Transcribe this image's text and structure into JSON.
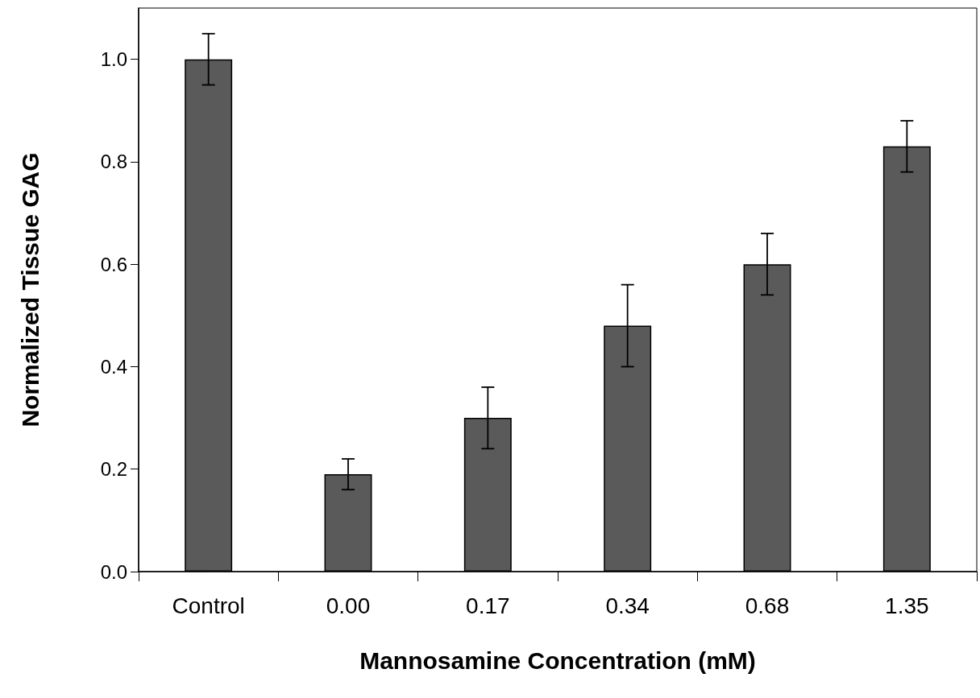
{
  "chart_data": {
    "type": "bar",
    "xlabel": "Mannosamine Concentration (mM)",
    "ylabel": "Normalized Tissue GAG",
    "categories": [
      "Control",
      "0.00",
      "0.17",
      "0.34",
      "0.68",
      "1.35"
    ],
    "values": [
      1.0,
      0.19,
      0.3,
      0.48,
      0.6,
      0.83
    ],
    "errors": [
      0.05,
      0.03,
      0.06,
      0.08,
      0.06,
      0.05
    ],
    "color": "#5a5a5a",
    "ylim": [
      0,
      1.1
    ],
    "yticks": [
      {
        "value": 0,
        "label": "0.0"
      },
      0.2,
      0.4,
      0.6,
      0.8,
      {
        "value": 1,
        "label": "1.0"
      }
    ],
    "grid": false
  }
}
